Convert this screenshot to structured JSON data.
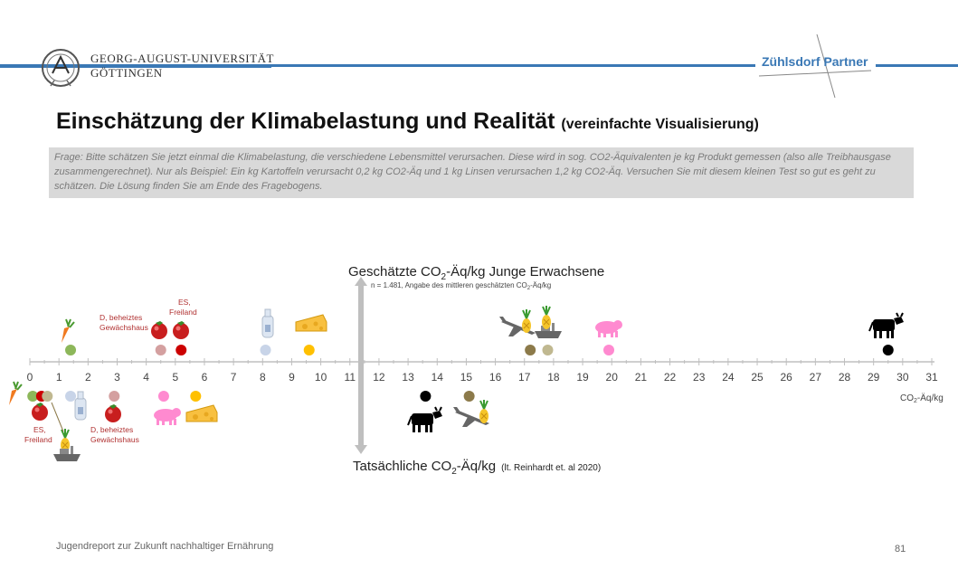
{
  "header": {
    "university_line1": "GEORG-AUGUST-UNIVERSITÄT",
    "university_line2": "GÖTTINGEN",
    "partner_left": "Zühlsdorf",
    "partner_right": "Partner",
    "accent_color": "#3a78b5"
  },
  "slide": {
    "title_main": "Einschätzung der Klimabelastung und Realität",
    "title_sub": "(vereinfachte Visualisierung)",
    "question": "Frage: Bitte schätzen Sie jetzt einmal die Klimabelastung, die verschiedene Lebensmittel verursachen. Diese wird in sog. CO2-Äquivalenten je kg Produkt gemessen (also alle Treibhausgase zusammengerechnet). Nur als Beispiel: Ein kg Kartoffeln verursacht 0,2 kg CO2-Äq und 1 kg Linsen verursachen 1,2 kg CO2-Äq. Versuchen Sie mit diesem kleinen Test so gut es geht zu schätzen. Die Lösung finden Sie am Ende des Fragebogens.",
    "footer": "Jugendreport zur Zukunft nachhaltiger Ernährung",
    "page_number": "81"
  },
  "chart_data": {
    "type": "scatter",
    "top_label": {
      "pre": "Geschätzte CO",
      "sub": "2",
      "post": "-Äq/kg Junge Erwachsene"
    },
    "top_note": {
      "pre": "n = 1.481, Angabe des mittleren geschätzten CO",
      "sub": "2",
      "post": "-Äq/kg"
    },
    "bottom_label": {
      "pre": "Tatsächliche CO",
      "sub": "2",
      "post": "-Äq/kg",
      "note": "(lt. Reinhardt et. al 2020)"
    },
    "axis_unit": {
      "pre": "CO",
      "sub": "2",
      "post": "-Äq/kg"
    },
    "xlim": [
      0,
      31
    ],
    "tick_labels": [
      "0",
      "1",
      "2",
      "3",
      "4",
      "5",
      "6",
      "7",
      "8",
      "9",
      "10",
      "11",
      "12",
      "13",
      "14",
      "15",
      "16",
      "17",
      "18",
      "19",
      "20",
      "21",
      "22",
      "23",
      "24",
      "25",
      "26",
      "27",
      "28",
      "29",
      "30",
      "31"
    ],
    "labels": {
      "d_beheizt_1": "D, beheiztes",
      "d_beheizt_2": "Gewächshaus",
      "es_1": "ES,",
      "es_2": "Freiland"
    },
    "estimated": [
      {
        "item": "carrot-icon",
        "x": 1.4,
        "color": "#8db75a"
      },
      {
        "item": "tomato-d-icon",
        "x": 4.5,
        "color": "#d4a0a0"
      },
      {
        "item": "tomato-es-icon",
        "x": 5.2,
        "color": "#cc0000"
      },
      {
        "item": "milk-icon",
        "x": 8.1,
        "color": "#c8d4e8"
      },
      {
        "item": "cheese-icon",
        "x": 9.6,
        "color": "#ffc000"
      },
      {
        "item": "pineapple-plane-icon",
        "x": 17.2,
        "color": "#8c7a4a"
      },
      {
        "item": "pineapple-ship-icon",
        "x": 17.8,
        "color": "#c0b890"
      },
      {
        "item": "pork-icon",
        "x": 19.9,
        "color": "#ff8ad0"
      },
      {
        "item": "beef-icon",
        "x": 29.5,
        "color": "#000000"
      }
    ],
    "actual": [
      {
        "item": "carrot-icon",
        "x": 0.1,
        "color": "#8db75a"
      },
      {
        "item": "tomato-es-icon",
        "x": 0.4,
        "color": "#cc0000"
      },
      {
        "item": "pineapple-ship-icon",
        "x": 0.6,
        "color": "#c0b890"
      },
      {
        "item": "milk-icon",
        "x": 1.4,
        "color": "#c8d4e8"
      },
      {
        "item": "tomato-d-icon",
        "x": 2.9,
        "color": "#d4a0a0"
      },
      {
        "item": "pork-icon",
        "x": 4.6,
        "color": "#ff8ad0"
      },
      {
        "item": "cheese-icon",
        "x": 5.7,
        "color": "#ffc000"
      },
      {
        "item": "beef-icon",
        "x": 13.6,
        "color": "#000000"
      },
      {
        "item": "pineapple-plane-icon",
        "x": 15.1,
        "color": "#8c7a4a"
      }
    ]
  }
}
